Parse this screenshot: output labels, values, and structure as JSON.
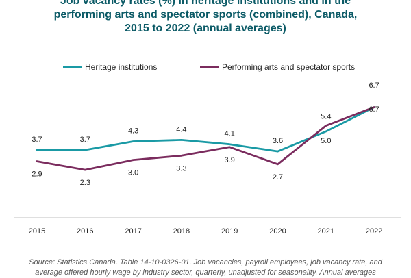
{
  "header": {
    "title_line1": "Job vacancy rates (%) in heritage institutions and in the",
    "title_line2": "performing arts and spectator sports (combined), Canada,",
    "title_line3": "2015 to 2022 (annual averages)"
  },
  "footer": {
    "source_line1": "Source: Statistics Canada. Table 14-10-0326-01. Job vacancies, payroll employees, job vacancy rate, and",
    "source_line2": "average offered hourly wage by industry sector, quarterly, unadjusted for seasonality. Annual averages"
  },
  "chart_data": {
    "type": "line",
    "categories": [
      "2015",
      "2016",
      "2017",
      "2018",
      "2019",
      "2020",
      "2021",
      "2022"
    ],
    "series": [
      {
        "name": "Heritage institutions",
        "color": "#1a9aa5",
        "values": [
          3.7,
          3.7,
          4.3,
          4.4,
          4.1,
          3.6,
          5.0,
          6.7
        ],
        "labels": [
          "3.7",
          "3.7",
          "4.3",
          "4.4",
          "4.1",
          "3.6",
          "5.0",
          "6.7"
        ]
      },
      {
        "name": "Performing arts and spectator sports",
        "color": "#7b2c5e",
        "values": [
          2.9,
          2.3,
          3.0,
          3.3,
          3.9,
          2.7,
          5.4,
          6.7
        ],
        "labels": [
          "2.9",
          "2.3",
          "3.0",
          "3.3",
          "3.9",
          "2.7",
          "5.4",
          "6.7"
        ]
      }
    ],
    "legend_position": "top",
    "grid": false
  }
}
